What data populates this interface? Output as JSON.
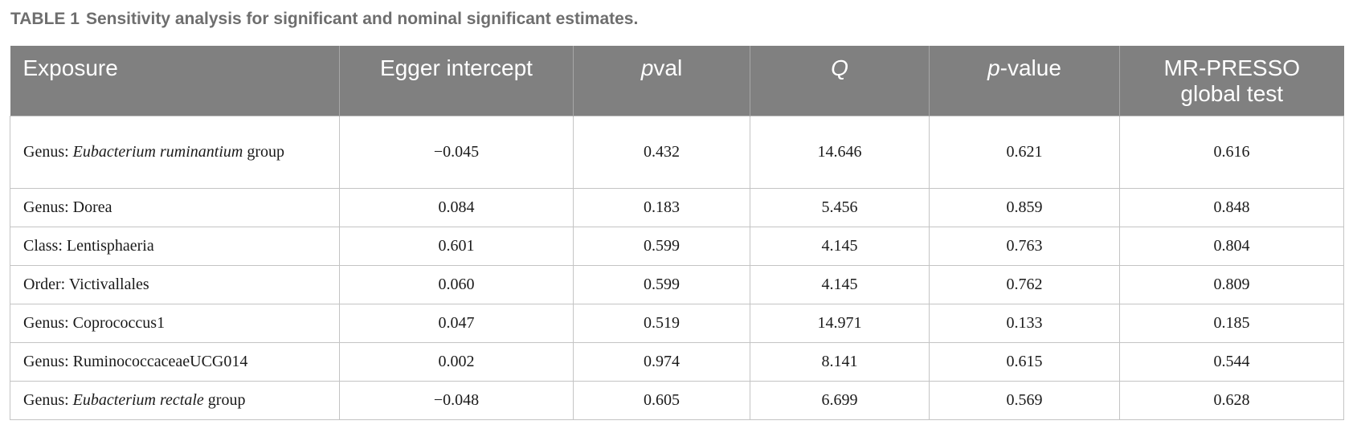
{
  "caption": {
    "label": "TABLE 1",
    "text": "Sensitivity analysis for significant and nominal significant estimates."
  },
  "table": {
    "headers": {
      "exposure": "Exposure",
      "egger_intercept": "Egger intercept",
      "pval_italic": "p",
      "pval_rest": "val",
      "q": "Q",
      "pvalue_italic": "p",
      "pvalue_rest": "-value",
      "mrpresso": "MR-PRESSO global test"
    },
    "rows": [
      {
        "exposure_prefix": "Genus: ",
        "exposure_italic": "Eubacterium ruminantium",
        "exposure_suffix": " group",
        "egger": "−0.045",
        "pval": "0.432",
        "q": "14.646",
        "pvalue": "0.621",
        "mrpresso": "0.616"
      },
      {
        "exposure_prefix": "Genus: Dorea",
        "egger": "0.084",
        "pval": "0.183",
        "q": "5.456",
        "pvalue": "0.859",
        "mrpresso": "0.848"
      },
      {
        "exposure_prefix": "Class: Lentisphaeria",
        "egger": "0.601",
        "pval": "0.599",
        "q": "4.145",
        "pvalue": "0.763",
        "mrpresso": "0.804"
      },
      {
        "exposure_prefix": "Order: Victivallales",
        "egger": "0.060",
        "pval": "0.599",
        "q": "4.145",
        "pvalue": "0.762",
        "mrpresso": "0.809"
      },
      {
        "exposure_prefix": "Genus: Coprococcus1",
        "egger": "0.047",
        "pval": "0.519",
        "q": "14.971",
        "pvalue": "0.133",
        "mrpresso": "0.185"
      },
      {
        "exposure_prefix": "Genus: RuminococcaceaeUCG014",
        "egger": "0.002",
        "pval": "0.974",
        "q": "8.141",
        "pvalue": "0.615",
        "mrpresso": "0.544"
      },
      {
        "exposure_prefix": "Genus: ",
        "exposure_italic": "Eubacterium rectale",
        "exposure_suffix": " group",
        "egger": "−0.048",
        "pval": "0.605",
        "q": "6.699",
        "pvalue": "0.569",
        "mrpresso": "0.628"
      }
    ]
  }
}
